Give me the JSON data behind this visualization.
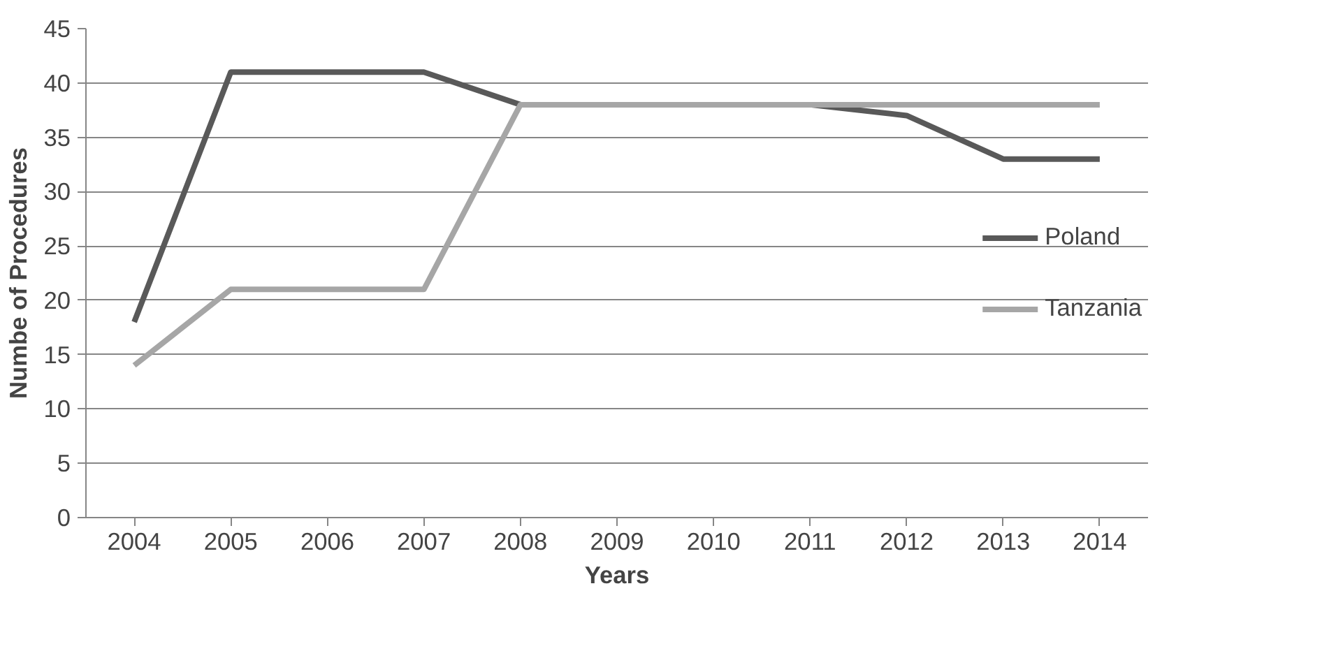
{
  "chart_data": {
    "type": "line",
    "xlabel": "Years",
    "ylabel": "Numbe of Procedures",
    "categories": [
      "2004",
      "2005",
      "2006",
      "2007",
      "2008",
      "2009",
      "2010",
      "2011",
      "2012",
      "2013",
      "2014"
    ],
    "series": [
      {
        "name": "Poland",
        "color": "#595959",
        "values": [
          18,
          41,
          41,
          41,
          38,
          38,
          38,
          38,
          37,
          33,
          33
        ]
      },
      {
        "name": "Tanzania",
        "color": "#a6a6a6",
        "values": [
          14,
          21,
          21,
          21,
          38,
          38,
          38,
          38,
          38,
          38,
          38
        ]
      }
    ],
    "ylim": [
      0,
      45
    ],
    "yticks": [
      0,
      5,
      10,
      15,
      20,
      25,
      30,
      35,
      40,
      45
    ],
    "grid": "y",
    "legend": "right",
    "marker": "none",
    "line_style": "solid"
  }
}
